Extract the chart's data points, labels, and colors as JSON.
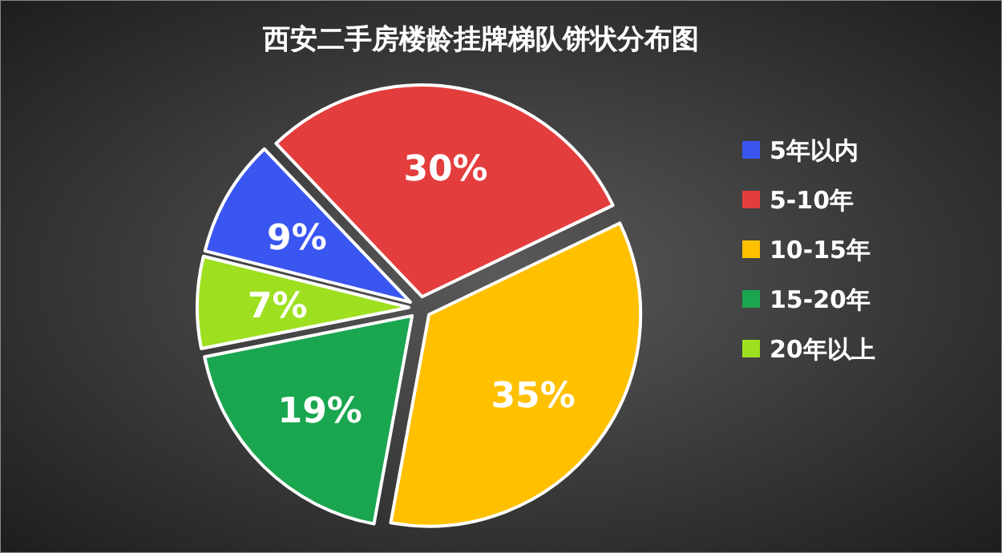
{
  "chart_data": {
    "type": "pie",
    "title": "西安二手房楼龄挂牌梯队饼状分布图",
    "categories": [
      "5年以内",
      "5-10年",
      "10-15年",
      "15-20年",
      "20年以上"
    ],
    "values": [
      9,
      30,
      35,
      19,
      7
    ],
    "value_labels": [
      "9%",
      "30%",
      "35%",
      "19%",
      "7%"
    ],
    "colors": [
      "#3a56f0",
      "#e43d3d",
      "#ffc000",
      "#1aa64f",
      "#9ee020"
    ],
    "legend": "right"
  }
}
